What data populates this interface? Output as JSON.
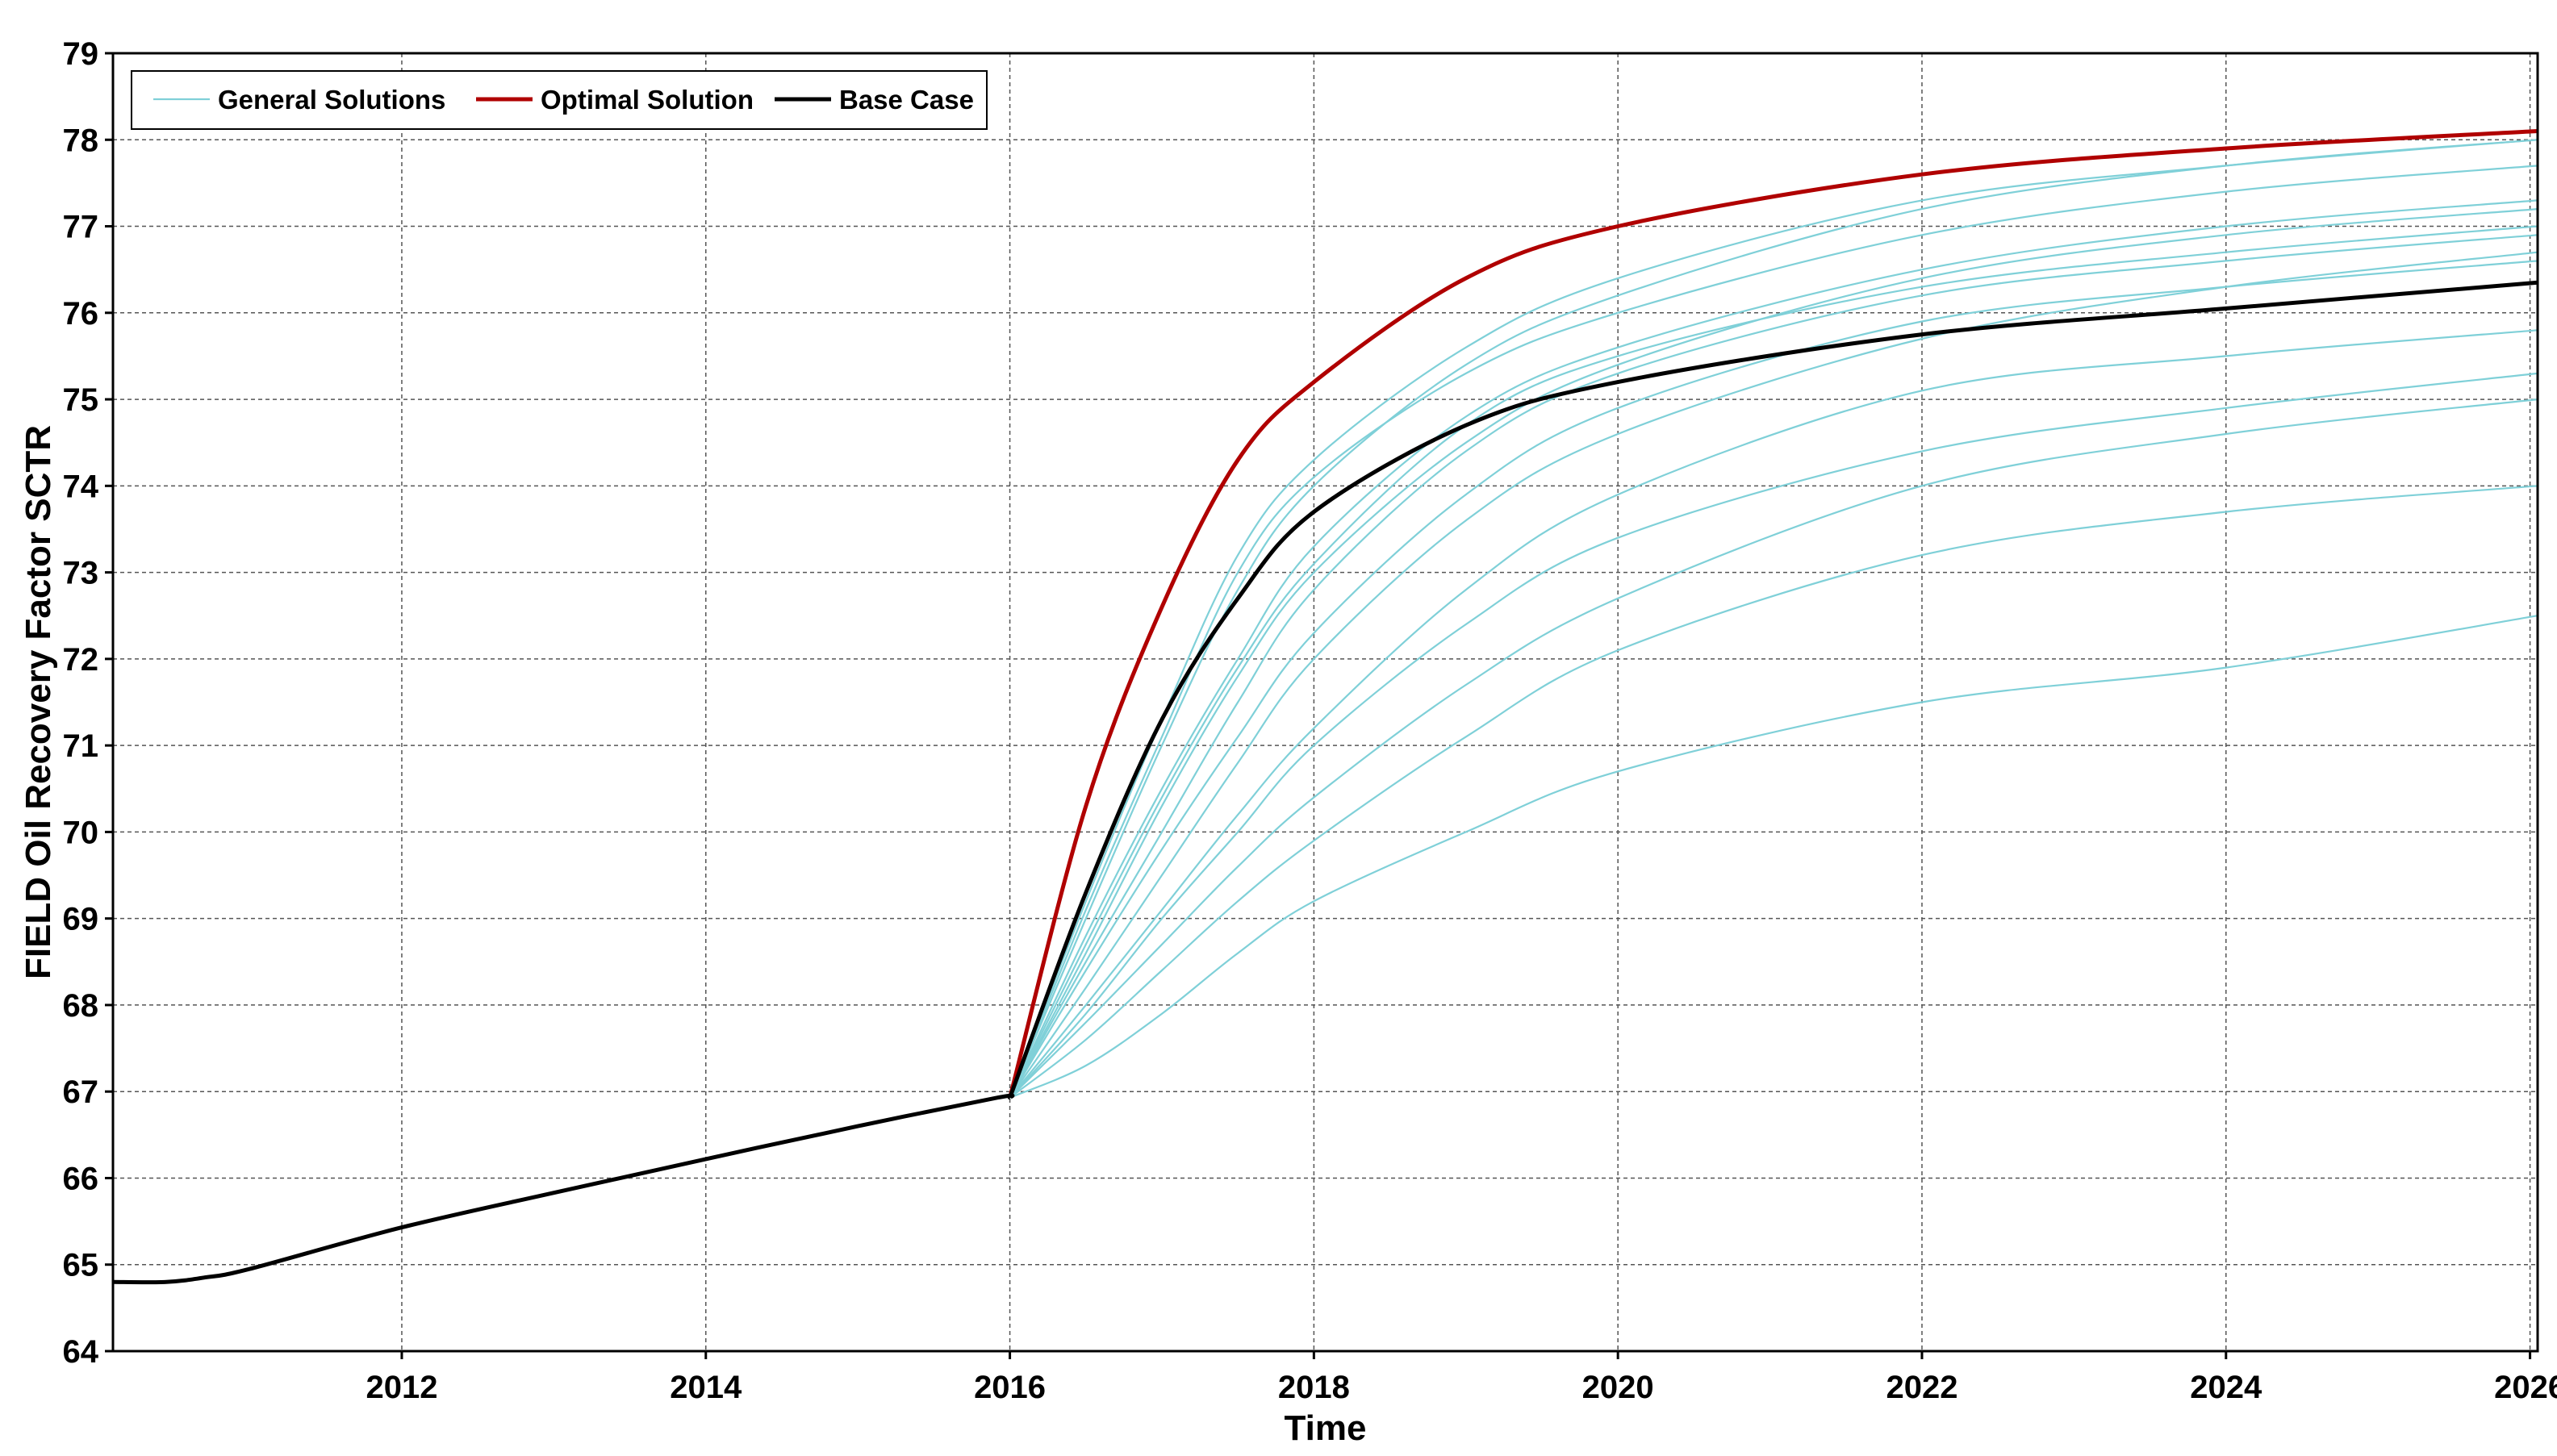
{
  "chart_data": {
    "type": "line",
    "xlabel": "Time",
    "ylabel": "FIELD Oil Recovery Factor SCTR",
    "xlim": [
      2010.1,
      2026.05
    ],
    "ylim": [
      64,
      79
    ],
    "x_ticks": [
      {
        "value": 2012,
        "label": "2012"
      },
      {
        "value": 2014,
        "label": "2014"
      },
      {
        "value": 2016,
        "label": "2016"
      },
      {
        "value": 2018,
        "label": "2018"
      },
      {
        "value": 2020,
        "label": "2020"
      },
      {
        "value": 2022,
        "label": "2022"
      },
      {
        "value": 2024,
        "label": "2024"
      },
      {
        "value": 2026,
        "label": "2026"
      }
    ],
    "y_ticks": [
      {
        "value": 64,
        "label": "64"
      },
      {
        "value": 65,
        "label": "65"
      },
      {
        "value": 66,
        "label": "66"
      },
      {
        "value": 67,
        "label": "67"
      },
      {
        "value": 68,
        "label": "68"
      },
      {
        "value": 69,
        "label": "69"
      },
      {
        "value": 70,
        "label": "70"
      },
      {
        "value": 71,
        "label": "71"
      },
      {
        "value": 72,
        "label": "72"
      },
      {
        "value": 73,
        "label": "73"
      },
      {
        "value": 74,
        "label": "74"
      },
      {
        "value": 75,
        "label": "75"
      },
      {
        "value": 76,
        "label": "76"
      },
      {
        "value": 77,
        "label": "77"
      },
      {
        "value": 78,
        "label": "78"
      },
      {
        "value": 79,
        "label": "79"
      }
    ],
    "grid": true,
    "legend_position": "top-left",
    "colors": {
      "general": "#7fd0d8",
      "optimal": "#b00000",
      "base": "#000000"
    },
    "history": {
      "x": [
        2010.1,
        2010.45,
        2010.7,
        2011,
        2012,
        2013,
        2014,
        2015,
        2015.92,
        2016.0
      ],
      "y": [
        64.8,
        64.8,
        64.85,
        64.95,
        65.43,
        65.83,
        66.22,
        66.6,
        66.93,
        66.93
      ]
    },
    "forecast_x": [
      2016.0,
      2016.5,
      2017.0,
      2017.5,
      2018.0,
      2019.0,
      2020.0,
      2022.0,
      2024.0,
      2026.05
    ],
    "series": [
      {
        "name": "General Solutions",
        "role": "general",
        "groups": [
          [
            66.93,
            67.8,
            68.7,
            69.6,
            70.4,
            71.7,
            72.7,
            74.0,
            74.6,
            75.0
          ],
          [
            66.93,
            68.5,
            70.0,
            71.5,
            72.8,
            74.4,
            75.3,
            76.2,
            76.6,
            76.9
          ],
          [
            66.93,
            69.0,
            71.0,
            72.8,
            74.0,
            75.4,
            76.2,
            77.2,
            77.7,
            78.0
          ],
          [
            66.93,
            68.8,
            70.5,
            72.0,
            73.3,
            74.8,
            75.6,
            76.5,
            77.0,
            77.3
          ],
          [
            66.93,
            68.2,
            69.5,
            70.8,
            72.0,
            73.6,
            74.6,
            75.7,
            76.3,
            76.7
          ],
          [
            66.93,
            68.0,
            69.1,
            70.2,
            71.2,
            72.8,
            73.9,
            75.1,
            75.5,
            75.8
          ],
          [
            66.93,
            67.6,
            68.4,
            69.2,
            69.9,
            71.1,
            72.1,
            73.2,
            73.7,
            74.0
          ],
          [
            66.93,
            67.3,
            67.9,
            68.6,
            69.2,
            70.0,
            70.7,
            71.5,
            71.9,
            72.5
          ],
          [
            66.93,
            69.2,
            71.3,
            73.2,
            74.3,
            75.6,
            76.4,
            77.3,
            77.7,
            78.0
          ],
          [
            66.93,
            68.6,
            70.3,
            71.8,
            73.0,
            74.5,
            75.4,
            76.4,
            76.9,
            77.2
          ],
          [
            66.93,
            67.9,
            69.0,
            70.0,
            71.0,
            72.4,
            73.4,
            74.4,
            74.9,
            75.3
          ],
          [
            66.93,
            68.4,
            69.8,
            71.1,
            72.3,
            73.9,
            74.9,
            75.9,
            76.3,
            76.6
          ],
          [
            66.93,
            69.1,
            71.1,
            73.0,
            74.1,
            75.3,
            76.0,
            76.9,
            77.4,
            77.7
          ],
          [
            66.93,
            68.7,
            70.4,
            71.9,
            73.1,
            74.7,
            75.5,
            76.3,
            76.7,
            77.0
          ]
        ]
      },
      {
        "name": "Optimal Solution",
        "role": "optimal",
        "y": [
          66.93,
          70.3,
          72.6,
          74.3,
          75.2,
          76.4,
          77.0,
          77.6,
          77.9,
          78.1
        ]
      },
      {
        "name": "Base Case",
        "role": "base",
        "y": [
          66.93,
          69.3,
          71.3,
          72.7,
          73.7,
          74.7,
          75.2,
          75.75,
          76.05,
          76.35
        ]
      }
    ]
  }
}
